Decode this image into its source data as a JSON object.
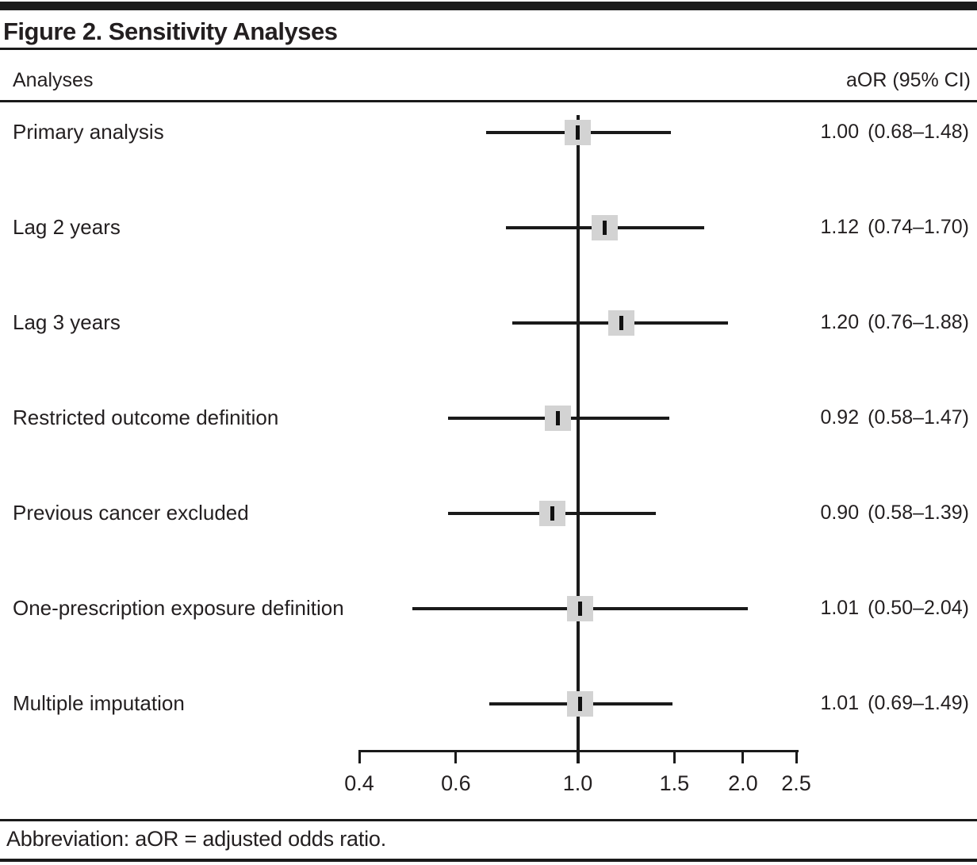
{
  "figure": {
    "title": "Figure 2. Sensitivity Analyses",
    "column_header_left": "Analyses",
    "column_header_right": "aOR (95% CI)",
    "footnote": "Abbreviation: aOR = adjusted odds ratio."
  },
  "chart_data": {
    "type": "forest",
    "title": "Figure 2. Sensitivity Analyses",
    "xlabel": "",
    "ylabel": "Analyses",
    "scale": "log",
    "xlim": [
      0.4,
      2.5
    ],
    "x_ticks": [
      0.4,
      0.6,
      1.0,
      1.5,
      2.0,
      2.5
    ],
    "x_tick_labels": [
      "0.4",
      "0.6",
      "1.0",
      "1.5",
      "2.0",
      "2.5"
    ],
    "reference_line": 1.0,
    "grid": false,
    "legend": false,
    "marker_color": "#d3d3d3",
    "line_color": "#1a1a1a",
    "rows": [
      {
        "label": "Primary analysis",
        "aor": 1.0,
        "ci_low": 0.68,
        "ci_high": 1.48,
        "aor_text": "1.00",
        "ci_text": "(0.68–1.48)"
      },
      {
        "label": "Lag 2 years",
        "aor": 1.12,
        "ci_low": 0.74,
        "ci_high": 1.7,
        "aor_text": "1.12",
        "ci_text": "(0.74–1.70)"
      },
      {
        "label": "Lag 3 years",
        "aor": 1.2,
        "ci_low": 0.76,
        "ci_high": 1.88,
        "aor_text": "1.20",
        "ci_text": "(0.76–1.88)"
      },
      {
        "label": "Restricted outcome definition",
        "aor": 0.92,
        "ci_low": 0.58,
        "ci_high": 1.47,
        "aor_text": "0.92",
        "ci_text": "(0.58–1.47)"
      },
      {
        "label": "Previous cancer excluded",
        "aor": 0.9,
        "ci_low": 0.58,
        "ci_high": 1.39,
        "aor_text": "0.90",
        "ci_text": "(0.58–1.39)"
      },
      {
        "label": "One-prescription exposure definition",
        "aor": 1.01,
        "ci_low": 0.5,
        "ci_high": 2.04,
        "aor_text": "1.01",
        "ci_text": "(0.50–2.04)"
      },
      {
        "label": "Multiple imputation",
        "aor": 1.01,
        "ci_low": 0.69,
        "ci_high": 1.49,
        "aor_text": "1.01",
        "ci_text": "(0.69–1.49)"
      }
    ]
  }
}
